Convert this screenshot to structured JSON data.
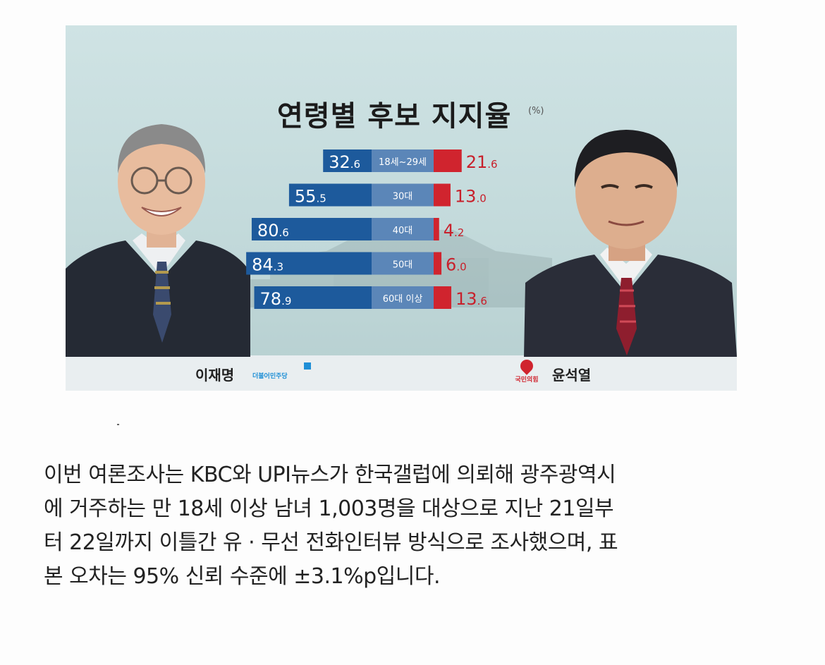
{
  "chart_data": {
    "type": "bar",
    "title": "연령별 후보 지지율",
    "unit_label": "(%)",
    "categories": [
      "18세~29세",
      "30대",
      "40대",
      "50대",
      "60대 이상"
    ],
    "series": [
      {
        "name": "이재명",
        "color": "#1d5a9c",
        "values": [
          32.6,
          55.5,
          80.6,
          84.3,
          78.9
        ],
        "labels": [
          {
            "int": "32",
            "dec": ".6"
          },
          {
            "int": "55",
            "dec": ".5"
          },
          {
            "int": "80",
            "dec": ".6"
          },
          {
            "int": "84",
            "dec": ".3"
          },
          {
            "int": "78",
            "dec": ".9"
          }
        ]
      },
      {
        "name": "윤석열",
        "color": "#d0242e",
        "values": [
          21.6,
          13.0,
          4.2,
          6.0,
          13.6
        ],
        "labels": [
          {
            "int": "21",
            "dec": ".6"
          },
          {
            "int": "13",
            "dec": ".0"
          },
          {
            "int": "4",
            "dec": ".2"
          },
          {
            "int": "6",
            "dec": ".0"
          },
          {
            "int": "13",
            "dec": ".6"
          }
        ]
      }
    ]
  },
  "candidates": {
    "left": {
      "name": "이재명",
      "party": "더불어민주당"
    },
    "right": {
      "name": "윤석열",
      "party": "국민의힘"
    }
  },
  "caption": {
    "lines": [
      "이번 여론조사는 KBC와 UPI뉴스가 한국갤럽에 의뢰해 광주광역시",
      "에 거주하는 만 18세 이상 남녀 1,003명을 대상으로 지난 21일부",
      "터 22일까지 이틀간 유 · 무선 전화인터뷰 방식으로 조사했으며, 표",
      "본 오차는 95% 신뢰 수준에 ±3.1%p입니다."
    ]
  },
  "colors": {
    "blue": "#1d5a9c",
    "blue_label_band": "#5b86b8",
    "red": "#d0242e",
    "red_text": "#c8202b"
  }
}
